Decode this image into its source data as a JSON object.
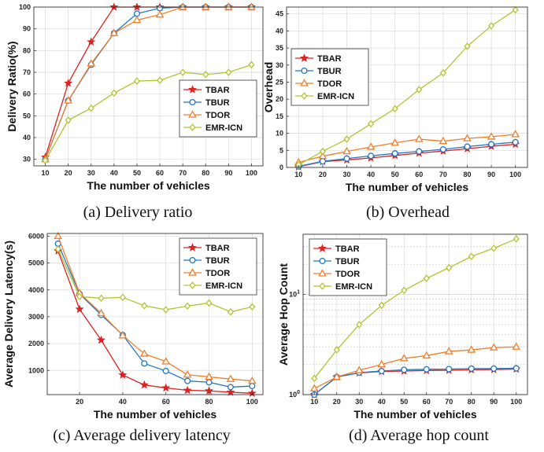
{
  "legend_names": [
    "TBAR",
    "TBUR",
    "TDOR",
    "EMR-ICN"
  ],
  "series_colors": [
    "#dd2222",
    "#1f77c4",
    "#f07d2a",
    "#b3c432"
  ],
  "series_markers": [
    "star",
    "circle",
    "triangle",
    "diamond"
  ],
  "chart_data": [
    {
      "type": "line",
      "caption": "(a) Delivery ratio",
      "xlabel": "The number of vehicles",
      "ylabel": "Delivery Ratio(%)",
      "x": [
        10,
        20,
        30,
        40,
        50,
        60,
        70,
        80,
        90,
        100
      ],
      "xlim": [
        5,
        105
      ],
      "ylim": [
        27,
        100
      ],
      "xticks": [
        10,
        20,
        30,
        40,
        50,
        60,
        70,
        80,
        90,
        100
      ],
      "yticks": [
        30,
        40,
        50,
        60,
        70,
        80,
        90,
        100
      ],
      "yscale": "linear",
      "grid": true,
      "legend_position": "center-right",
      "series": [
        {
          "name": "TBAR",
          "values": [
            31,
            65,
            84,
            100,
            100,
            100,
            100,
            100,
            100,
            100
          ]
        },
        {
          "name": "TBUR",
          "values": [
            30,
            57,
            73.5,
            88,
            97,
            99.5,
            100,
            100,
            100,
            100
          ]
        },
        {
          "name": "TDOR",
          "values": [
            30,
            57,
            74,
            88,
            94,
            96.5,
            100,
            100,
            100,
            100
          ]
        },
        {
          "name": "EMR-ICN",
          "values": [
            29.5,
            48,
            53.5,
            60.5,
            66,
            66.3,
            70,
            69,
            70,
            73.5
          ]
        }
      ]
    },
    {
      "type": "line",
      "caption": "(b) Overhead",
      "xlabel": "The number of vehicles",
      "ylabel": "Overhead",
      "x": [
        10,
        20,
        30,
        40,
        50,
        60,
        70,
        80,
        90,
        100
      ],
      "xlim": [
        5,
        105
      ],
      "ylim": [
        0,
        47
      ],
      "xticks": [
        10,
        20,
        30,
        40,
        50,
        60,
        70,
        80,
        90,
        100
      ],
      "yticks": [
        0,
        5,
        10,
        15,
        20,
        25,
        30,
        35,
        40,
        45
      ],
      "yscale": "linear",
      "grid": true,
      "legend_position": "top-left",
      "series": [
        {
          "name": "TBAR",
          "values": [
            0.2,
            1.7,
            2.2,
            2.8,
            3.5,
            4.2,
            4.8,
            5.5,
            6.2,
            6.8
          ]
        },
        {
          "name": "TBUR",
          "values": [
            0.3,
            1.8,
            2.6,
            3.4,
            4.1,
            4.7,
            5.3,
            6.1,
            6.8,
            7.4
          ]
        },
        {
          "name": "TDOR",
          "values": [
            1.5,
            3.3,
            4.7,
            6.0,
            7.2,
            8.3,
            7.7,
            8.5,
            9.0,
            9.7
          ]
        },
        {
          "name": "EMR-ICN",
          "values": [
            0.8,
            4.7,
            8.3,
            12.8,
            17.2,
            22.8,
            27.7,
            35.5,
            41.5,
            46.2
          ]
        }
      ]
    },
    {
      "type": "line",
      "caption": "(c) Average delivery latency",
      "xlabel": "The number of vehicles",
      "ylabel": "Average Delivery Latency(s)",
      "x": [
        10,
        20,
        30,
        40,
        50,
        60,
        70,
        80,
        90,
        100
      ],
      "xlim": [
        5,
        105
      ],
      "ylim": [
        100,
        6100
      ],
      "xticks": [
        20,
        40,
        60,
        80,
        100
      ],
      "yticks": [
        1000,
        2000,
        3000,
        4000,
        5000,
        6000
      ],
      "yscale": "linear",
      "grid": true,
      "legend_position": "top-right",
      "series": [
        {
          "name": "TBAR",
          "values": [
            5450,
            3280,
            2130,
            830,
            460,
            350,
            260,
            240,
            190,
            150
          ]
        },
        {
          "name": "TBUR",
          "values": [
            5720,
            3850,
            3070,
            2320,
            1260,
            980,
            610,
            560,
            380,
            420
          ]
        },
        {
          "name": "TDOR",
          "values": [
            6000,
            3880,
            3130,
            2300,
            1620,
            1330,
            840,
            760,
            680,
            610
          ]
        },
        {
          "name": "EMR-ICN",
          "values": [
            5520,
            3750,
            3690,
            3720,
            3410,
            3260,
            3400,
            3510,
            3180,
            3370
          ]
        }
      ]
    },
    {
      "type": "line",
      "caption": "(d) Average hop count",
      "xlabel": "The number of vehicles",
      "ylabel": "Average Hop Count",
      "x": [
        10,
        20,
        30,
        40,
        50,
        60,
        70,
        80,
        90,
        100
      ],
      "xlim": [
        5,
        105
      ],
      "ylim": [
        1,
        40
      ],
      "xticks": [
        10,
        20,
        30,
        40,
        50,
        60,
        70,
        80,
        90,
        100
      ],
      "yticks": [
        1,
        10
      ],
      "yscale": "log",
      "grid": true,
      "legend_position": "top-left",
      "series": [
        {
          "name": "TBAR",
          "values": [
            1.0,
            1.5,
            1.65,
            1.7,
            1.72,
            1.74,
            1.75,
            1.77,
            1.78,
            1.8
          ]
        },
        {
          "name": "TBUR",
          "values": [
            1.0,
            1.5,
            1.66,
            1.72,
            1.77,
            1.79,
            1.8,
            1.82,
            1.82,
            1.83
          ]
        },
        {
          "name": "TDOR",
          "values": [
            1.15,
            1.5,
            1.75,
            2.0,
            2.3,
            2.45,
            2.7,
            2.8,
            2.95,
            3.0
          ]
        },
        {
          "name": "EMR-ICN",
          "values": [
            1.45,
            2.8,
            5.0,
            7.8,
            11.0,
            14.5,
            18.5,
            24.0,
            29.0,
            36.0
          ]
        }
      ]
    }
  ]
}
